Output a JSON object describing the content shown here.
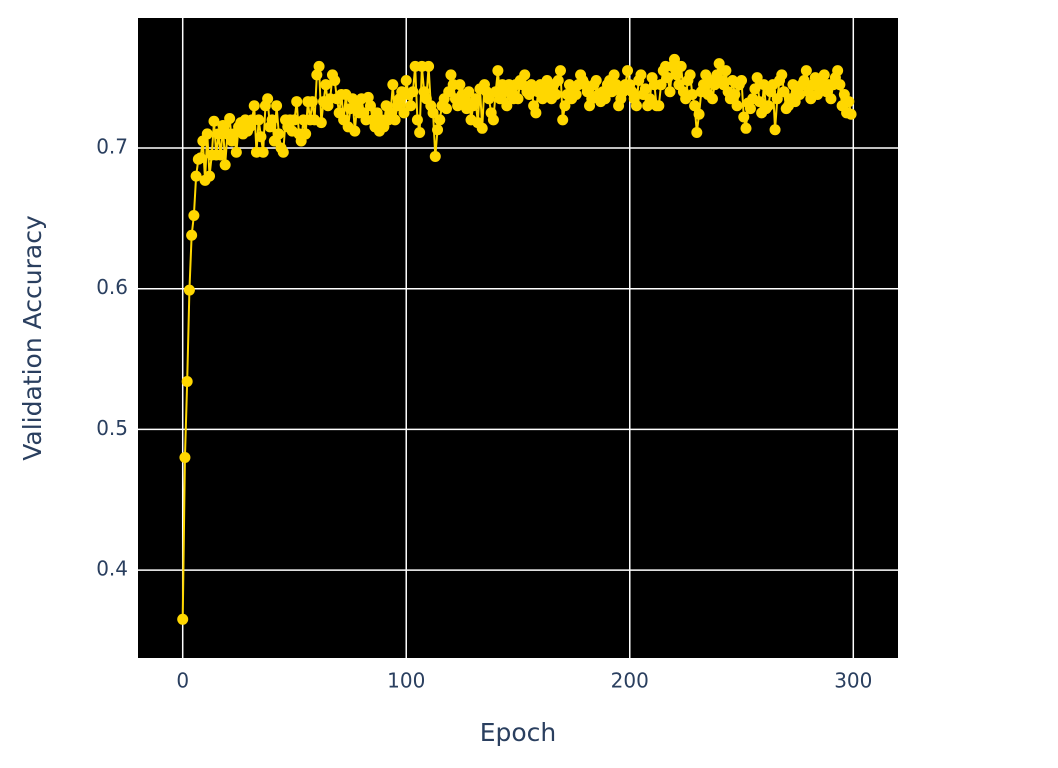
{
  "chart_data": {
    "type": "line",
    "x_label": "Epoch",
    "y_label": "Validation Accuracy",
    "color": "#ffd700",
    "grid": true,
    "markers": true,
    "xlim": [
      -20,
      320
    ],
    "xticks": [
      0,
      100,
      200,
      300
    ],
    "ylim": [
      0.3375,
      0.7924
    ],
    "yticks": [
      0.4,
      0.5,
      0.6,
      0.7
    ],
    "x": [
      0,
      1,
      2,
      3,
      4,
      5,
      6,
      7,
      8,
      9,
      10,
      11,
      12,
      13,
      14,
      15,
      16,
      17,
      18,
      19,
      20,
      21,
      22,
      23,
      24,
      25,
      26,
      27,
      28,
      29,
      30,
      31,
      32,
      33,
      34,
      35,
      36,
      37,
      38,
      39,
      40,
      41,
      42,
      43,
      44,
      45,
      46,
      47,
      48,
      49,
      50,
      51,
      52,
      53,
      54,
      55,
      56,
      57,
      58,
      59,
      60,
      61,
      62,
      63,
      64,
      65,
      66,
      67,
      68,
      69,
      70,
      71,
      72,
      73,
      74,
      75,
      76,
      77,
      78,
      79,
      80,
      81,
      82,
      83,
      84,
      85,
      86,
      87,
      88,
      89,
      90,
      91,
      92,
      93,
      94,
      95,
      96,
      97,
      98,
      99,
      100,
      101,
      102,
      103,
      104,
      105,
      106,
      107,
      108,
      109,
      110,
      111,
      112,
      113,
      114,
      115,
      116,
      117,
      118,
      119,
      120,
      121,
      122,
      123,
      124,
      125,
      126,
      127,
      128,
      129,
      130,
      131,
      132,
      133,
      134,
      135,
      136,
      137,
      138,
      139,
      140,
      141,
      142,
      143,
      144,
      145,
      146,
      147,
      148,
      149,
      150,
      151,
      152,
      153,
      154,
      155,
      156,
      157,
      158,
      159,
      160,
      161,
      162,
      163,
      164,
      165,
      166,
      167,
      168,
      169,
      170,
      171,
      172,
      173,
      174,
      175,
      176,
      177,
      178,
      179,
      180,
      181,
      182,
      183,
      184,
      185,
      186,
      187,
      188,
      189,
      190,
      191,
      192,
      193,
      194,
      195,
      196,
      197,
      198,
      199,
      200,
      201,
      202,
      203,
      204,
      205,
      206,
      207,
      208,
      209,
      210,
      211,
      212,
      213,
      214,
      215,
      216,
      217,
      218,
      219,
      220,
      221,
      222,
      223,
      224,
      225,
      226,
      227,
      228,
      229,
      230,
      231,
      232,
      233,
      234,
      235,
      236,
      237,
      238,
      239,
      240,
      241,
      242,
      243,
      244,
      245,
      246,
      247,
      248,
      249,
      250,
      251,
      252,
      253,
      254,
      255,
      256,
      257,
      258,
      259,
      260,
      261,
      262,
      263,
      264,
      265,
      266,
      267,
      268,
      269,
      270,
      271,
      272,
      273,
      274,
      275,
      276,
      277,
      278,
      279,
      280,
      281,
      282,
      283,
      284,
      285,
      286,
      287,
      288,
      289,
      290,
      291,
      292,
      293,
      294,
      295,
      296,
      297,
      298,
      299
    ],
    "values": [
      0.365,
      0.48,
      0.534,
      0.599,
      0.638,
      0.652,
      0.68,
      0.692,
      0.693,
      0.705,
      0.677,
      0.71,
      0.68,
      0.695,
      0.719,
      0.695,
      0.71,
      0.695,
      0.716,
      0.688,
      0.71,
      0.721,
      0.705,
      0.71,
      0.697,
      0.715,
      0.718,
      0.71,
      0.72,
      0.712,
      0.715,
      0.72,
      0.73,
      0.697,
      0.72,
      0.708,
      0.697,
      0.73,
      0.735,
      0.715,
      0.72,
      0.705,
      0.73,
      0.71,
      0.7,
      0.697,
      0.72,
      0.715,
      0.72,
      0.712,
      0.72,
      0.733,
      0.71,
      0.705,
      0.72,
      0.71,
      0.733,
      0.72,
      0.733,
      0.72,
      0.752,
      0.758,
      0.718,
      0.733,
      0.745,
      0.73,
      0.735,
      0.752,
      0.748,
      0.735,
      0.725,
      0.738,
      0.72,
      0.738,
      0.715,
      0.728,
      0.735,
      0.712,
      0.73,
      0.725,
      0.735,
      0.725,
      0.72,
      0.736,
      0.73,
      0.72,
      0.715,
      0.725,
      0.712,
      0.72,
      0.715,
      0.73,
      0.72,
      0.725,
      0.745,
      0.72,
      0.73,
      0.735,
      0.74,
      0.725,
      0.748,
      0.738,
      0.73,
      0.74,
      0.758,
      0.72,
      0.711,
      0.758,
      0.74,
      0.735,
      0.758,
      0.73,
      0.725,
      0.694,
      0.713,
      0.72,
      0.73,
      0.735,
      0.728,
      0.74,
      0.752,
      0.745,
      0.735,
      0.73,
      0.745,
      0.738,
      0.733,
      0.728,
      0.74,
      0.72,
      0.73,
      0.735,
      0.718,
      0.742,
      0.714,
      0.745,
      0.74,
      0.735,
      0.725,
      0.72,
      0.74,
      0.755,
      0.735,
      0.745,
      0.74,
      0.73,
      0.745,
      0.74,
      0.735,
      0.745,
      0.735,
      0.748,
      0.745,
      0.752,
      0.74,
      0.738,
      0.745,
      0.73,
      0.725,
      0.74,
      0.745,
      0.735,
      0.745,
      0.748,
      0.74,
      0.735,
      0.745,
      0.738,
      0.748,
      0.755,
      0.72,
      0.73,
      0.738,
      0.745,
      0.735,
      0.74,
      0.738,
      0.745,
      0.752,
      0.748,
      0.745,
      0.74,
      0.73,
      0.735,
      0.745,
      0.748,
      0.738,
      0.733,
      0.74,
      0.735,
      0.745,
      0.748,
      0.74,
      0.752,
      0.745,
      0.73,
      0.735,
      0.74,
      0.745,
      0.755,
      0.745,
      0.74,
      0.735,
      0.73,
      0.748,
      0.752,
      0.738,
      0.742,
      0.73,
      0.735,
      0.75,
      0.745,
      0.73,
      0.73,
      0.745,
      0.755,
      0.758,
      0.75,
      0.74,
      0.758,
      0.763,
      0.752,
      0.745,
      0.758,
      0.74,
      0.735,
      0.748,
      0.752,
      0.738,
      0.73,
      0.711,
      0.724,
      0.74,
      0.745,
      0.752,
      0.738,
      0.748,
      0.735,
      0.745,
      0.752,
      0.76,
      0.748,
      0.745,
      0.755,
      0.74,
      0.735,
      0.748,
      0.738,
      0.73,
      0.745,
      0.748,
      0.722,
      0.714,
      0.732,
      0.728,
      0.735,
      0.742,
      0.75,
      0.733,
      0.725,
      0.745,
      0.728,
      0.73,
      0.74,
      0.745,
      0.713,
      0.735,
      0.748,
      0.752,
      0.74,
      0.728,
      0.73,
      0.735,
      0.745,
      0.733,
      0.74,
      0.738,
      0.745,
      0.748,
      0.755,
      0.74,
      0.735,
      0.745,
      0.75,
      0.738,
      0.742,
      0.748,
      0.752,
      0.74,
      0.745,
      0.735,
      0.745,
      0.75,
      0.755,
      0.745,
      0.73,
      0.738,
      0.725,
      0.733,
      0.724
    ]
  }
}
